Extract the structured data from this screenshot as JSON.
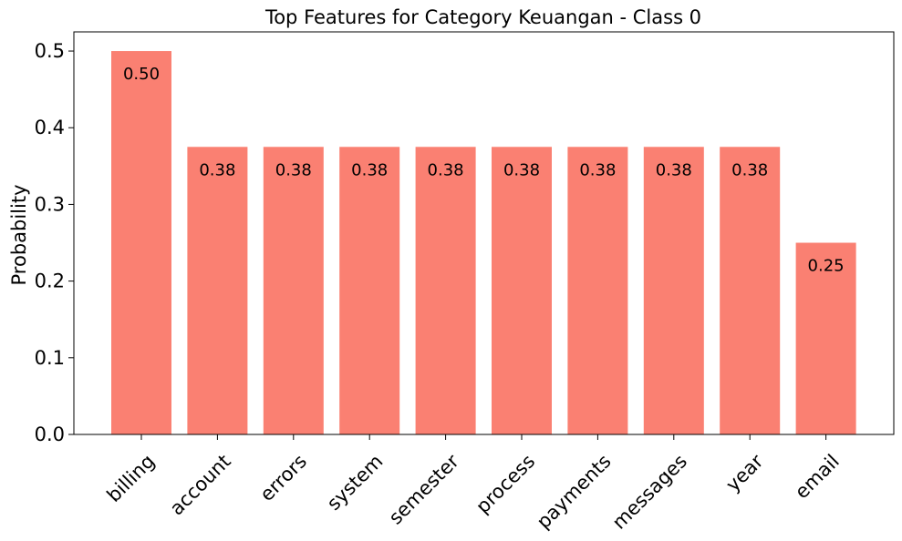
{
  "chart_data": {
    "type": "bar",
    "title": "Top Features for Category Keuangan - Class 0",
    "xlabel": "",
    "ylabel": "Probability",
    "categories": [
      "billing",
      "account",
      "errors",
      "system",
      "semester",
      "process",
      "payments",
      "messages",
      "year",
      "email"
    ],
    "values": [
      0.5,
      0.375,
      0.375,
      0.375,
      0.375,
      0.375,
      0.375,
      0.375,
      0.375,
      0.25
    ],
    "data_labels": [
      "0.50",
      "0.38",
      "0.38",
      "0.38",
      "0.38",
      "0.38",
      "0.38",
      "0.38",
      "0.38",
      "0.25"
    ],
    "yticks": [
      "0.0",
      "0.1",
      "0.2",
      "0.3",
      "0.4",
      "0.5"
    ],
    "ylim": [
      0,
      0.525
    ],
    "grid": false,
    "legend": "none",
    "bar_color": "#fa8072"
  }
}
